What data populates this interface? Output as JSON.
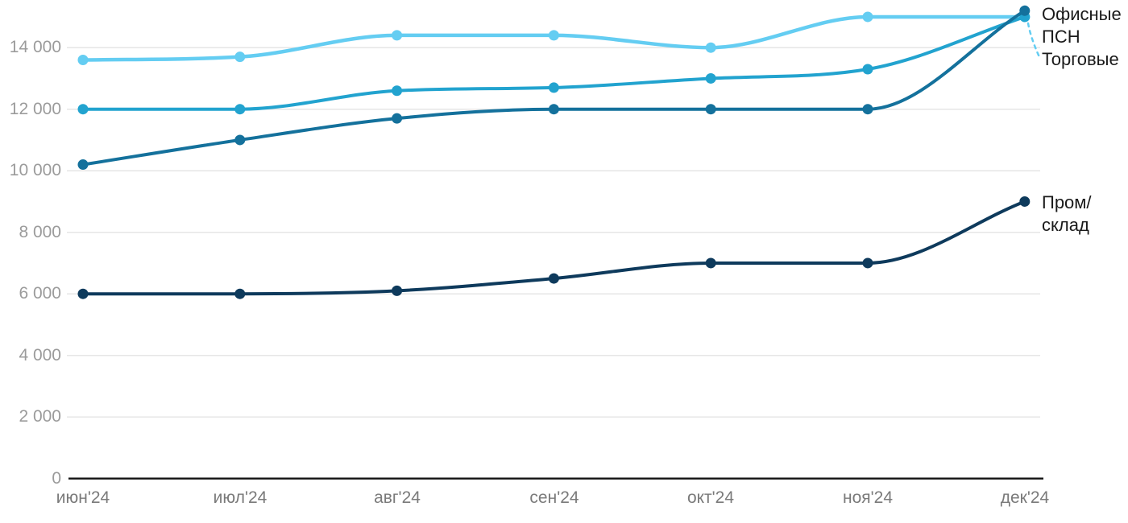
{
  "chart_data": {
    "type": "line",
    "title": "",
    "xlabel": "",
    "ylabel": "",
    "categories": [
      "июн'24",
      "июл'24",
      "авг'24",
      "сен'24",
      "окт'24",
      "ноя'24",
      "дек'24"
    ],
    "series": [
      {
        "name": "Торговые",
        "color": "#64CDF2",
        "values": [
          13600,
          13700,
          14400,
          14400,
          14000,
          15000,
          15000
        ]
      },
      {
        "name": "ПСН",
        "color": "#22A3CF",
        "values": [
          12000,
          12000,
          12600,
          12700,
          13000,
          13300,
          15000
        ]
      },
      {
        "name": "Офисные",
        "color": "#14719C",
        "values": [
          10200,
          11000,
          11700,
          12000,
          12000,
          12000,
          15200
        ]
      },
      {
        "name": "Пром/склад",
        "color": "#0E3A5C",
        "values": [
          6000,
          6000,
          6100,
          6500,
          7000,
          7000,
          9000
        ]
      }
    ],
    "y_ticks": [
      0,
      2000,
      4000,
      6000,
      8000,
      10000,
      12000,
      14000
    ],
    "y_tick_labels": [
      "0",
      "2 000",
      "4 000",
      "6 000",
      "8 000",
      "10 000",
      "12 000",
      "14 000"
    ],
    "ylim": [
      0,
      15500
    ],
    "grid": "horizontal",
    "legend_position": "end-of-line-labels-right"
  },
  "end_labels": {
    "offices": "Офисные",
    "psn": "ПСН",
    "retail": "Торговые",
    "prom_line1": "Пром/",
    "prom_line2": "склад"
  },
  "colors": {
    "axis_line": "#1A1A1A",
    "gridline": "#E6E6E6",
    "y_tick_text": "#9B9B9B",
    "x_tick_text": "#7A7A7A",
    "end_label_text": "#1A1A1A",
    "leader_dash": "#64CDF2"
  }
}
